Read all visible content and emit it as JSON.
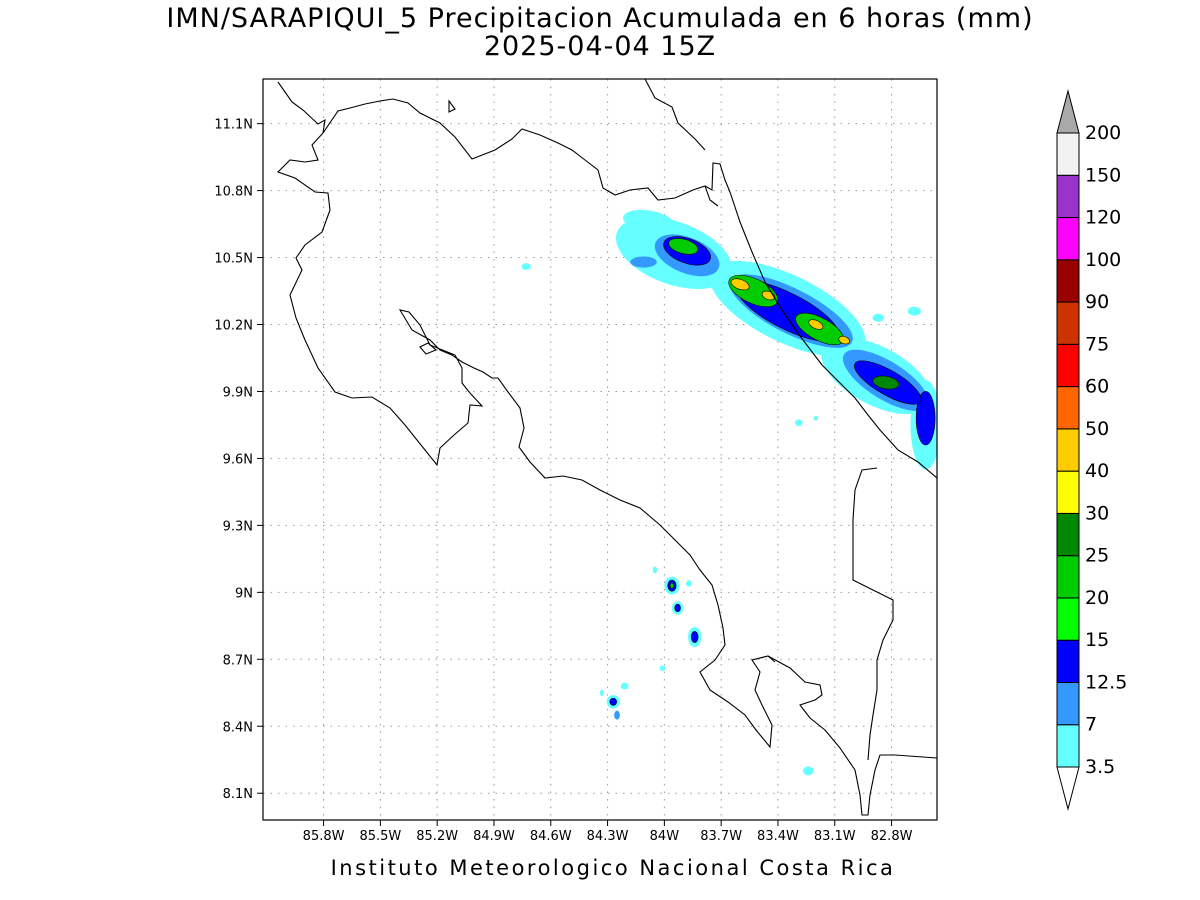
{
  "title": {
    "line1": "IMN/SARAPIQUI_5 Precipitacion Acumulada en 6 horas (mm)",
    "line2": "2025-04-04 15Z"
  },
  "footer": {
    "credit": "Instituto Meteorologico Nacional Costa Rica"
  },
  "map": {
    "lon_range": [
      -86.12,
      -82.56
    ],
    "lat_range": [
      7.98,
      11.3
    ],
    "lon_ticks": [
      {
        "value": -85.8,
        "label": "85.8W"
      },
      {
        "value": -85.5,
        "label": "85.5W"
      },
      {
        "value": -85.2,
        "label": "85.2W"
      },
      {
        "value": -84.9,
        "label": "84.9W"
      },
      {
        "value": -84.6,
        "label": "84.6W"
      },
      {
        "value": -84.3,
        "label": "84.3W"
      },
      {
        "value": -84.0,
        "label": "84W"
      },
      {
        "value": -83.7,
        "label": "83.7W"
      },
      {
        "value": -83.4,
        "label": "83.4W"
      },
      {
        "value": -83.1,
        "label": "83.1W"
      },
      {
        "value": -82.8,
        "label": "82.8W"
      }
    ],
    "lat_ticks": [
      {
        "value": 11.1,
        "label": "11.1N"
      },
      {
        "value": 10.8,
        "label": "10.8N"
      },
      {
        "value": 10.5,
        "label": "10.5N"
      },
      {
        "value": 10.2,
        "label": "10.2N"
      },
      {
        "value": 9.9,
        "label": "9.9N"
      },
      {
        "value": 9.6,
        "label": "9.6N"
      },
      {
        "value": 9.3,
        "label": "9.3N"
      },
      {
        "value": 9.0,
        "label": "9N"
      },
      {
        "value": 8.7,
        "label": "8.7N"
      },
      {
        "value": 8.4,
        "label": "8.4N"
      },
      {
        "value": 8.1,
        "label": "8.1N"
      }
    ],
    "grid": true,
    "precip_features": [
      {
        "name": "band-caribbean-northwest",
        "level": 0,
        "lon": -83.95,
        "lat": 10.52,
        "rlon": 0.32,
        "rlat": 0.14,
        "rot": 20
      },
      {
        "name": "band-caribbean-north-tip",
        "level": 0,
        "lon": -84.08,
        "lat": 10.66,
        "rlon": 0.14,
        "rlat": 0.05,
        "rot": 10
      },
      {
        "name": "band-caribbean-mid",
        "level": 0,
        "lon": -83.35,
        "lat": 10.27,
        "rlon": 0.45,
        "rlat": 0.15,
        "rot": 26
      },
      {
        "name": "band-caribbean-southeast",
        "level": 0,
        "lon": -82.88,
        "lat": 9.97,
        "rlon": 0.32,
        "rlat": 0.13,
        "rot": 28
      },
      {
        "name": "band-caribbean-coast-edge",
        "level": 0,
        "lon": -82.62,
        "lat": 9.75,
        "rlon": 0.08,
        "rlat": 0.2,
        "rot": 0
      },
      {
        "name": "band-light-west",
        "level": 1,
        "lon": -84.11,
        "lat": 10.48,
        "rlon": 0.07,
        "rlat": 0.025,
        "rot": 0
      },
      {
        "name": "band-moderate-northwest",
        "level": 1,
        "lon": -83.88,
        "lat": 10.51,
        "rlon": 0.18,
        "rlat": 0.08,
        "rot": 22
      },
      {
        "name": "band-moderate-mid",
        "level": 1,
        "lon": -83.33,
        "lat": 10.26,
        "rlon": 0.36,
        "rlat": 0.1,
        "rot": 27
      },
      {
        "name": "band-moderate-southeast",
        "level": 1,
        "lon": -82.83,
        "lat": 9.95,
        "rlon": 0.26,
        "rlat": 0.085,
        "rot": 32
      },
      {
        "name": "band-moderate-coast-edge",
        "level": 2,
        "lon": -82.62,
        "lat": 9.78,
        "rlon": 0.05,
        "rlat": 0.12,
        "rot": 0
      },
      {
        "name": "band-heavy-northwest",
        "level": 2,
        "lon": -83.88,
        "lat": 10.53,
        "rlon": 0.13,
        "rlat": 0.055,
        "rot": 20
      },
      {
        "name": "band-heavy-mid",
        "level": 2,
        "lon": -83.35,
        "lat": 10.26,
        "rlon": 0.3,
        "rlat": 0.08,
        "rot": 27
      },
      {
        "name": "band-heavy-southeast",
        "level": 2,
        "lon": -82.82,
        "lat": 9.94,
        "rlon": 0.2,
        "rlat": 0.055,
        "rot": 30
      },
      {
        "name": "core-north",
        "level": 4,
        "lon": -83.9,
        "lat": 10.55,
        "rlon": 0.08,
        "rlat": 0.032,
        "rot": 15
      },
      {
        "name": "core-mid-west",
        "level": 4,
        "lon": -83.53,
        "lat": 10.35,
        "rlon": 0.14,
        "rlat": 0.055,
        "rot": 25
      },
      {
        "name": "core-mid-east",
        "level": 4,
        "lon": -83.18,
        "lat": 10.18,
        "rlon": 0.14,
        "rlat": 0.05,
        "rot": 28
      },
      {
        "name": "core-southeast",
        "level": 5,
        "lon": -82.83,
        "lat": 9.94,
        "rlon": 0.07,
        "rlat": 0.028,
        "rot": 10
      },
      {
        "name": "peak-mid-west",
        "level": 7,
        "lon": -83.6,
        "lat": 10.38,
        "rlon": 0.05,
        "rlat": 0.022,
        "rot": 20
      },
      {
        "name": "peak-mid-center",
        "level": 7,
        "lon": -83.45,
        "lat": 10.33,
        "rlon": 0.035,
        "rlat": 0.018,
        "rot": 20
      },
      {
        "name": "peak-mid-east",
        "level": 7,
        "lon": -83.2,
        "lat": 10.2,
        "rlon": 0.04,
        "rlat": 0.018,
        "rot": 25
      },
      {
        "name": "peak-east",
        "level": 7,
        "lon": -83.05,
        "lat": 10.13,
        "rlon": 0.03,
        "rlat": 0.016,
        "rot": 20
      },
      {
        "name": "cell-pacific-a-outer",
        "level": 0,
        "lon": -83.96,
        "lat": 9.03,
        "rlon": 0.04,
        "rlat": 0.04,
        "rot": 0
      },
      {
        "name": "cell-pacific-a-mid",
        "level": 2,
        "lon": -83.96,
        "lat": 9.03,
        "rlon": 0.022,
        "rlat": 0.025,
        "rot": 0
      },
      {
        "name": "cell-pacific-a-core",
        "level": 4,
        "lon": -83.96,
        "lat": 9.03,
        "rlon": 0.01,
        "rlat": 0.012,
        "rot": 0
      },
      {
        "name": "cell-pacific-b-outer",
        "level": 0,
        "lon": -83.93,
        "lat": 8.93,
        "rlon": 0.03,
        "rlat": 0.03,
        "rot": 0
      },
      {
        "name": "cell-pacific-b-core",
        "level": 2,
        "lon": -83.93,
        "lat": 8.93,
        "rlon": 0.015,
        "rlat": 0.017,
        "rot": 0
      },
      {
        "name": "cell-pacific-c-outer",
        "level": 0,
        "lon": -83.84,
        "lat": 8.8,
        "rlon": 0.035,
        "rlat": 0.045,
        "rot": 0
      },
      {
        "name": "cell-pacific-c-core",
        "level": 2,
        "lon": -83.84,
        "lat": 8.8,
        "rlon": 0.018,
        "rlat": 0.025,
        "rot": 0
      },
      {
        "name": "cell-osa-a-outer",
        "level": 0,
        "lon": -84.27,
        "lat": 8.51,
        "rlon": 0.035,
        "rlat": 0.03,
        "rot": 0
      },
      {
        "name": "cell-osa-a-core",
        "level": 2,
        "lon": -84.27,
        "lat": 8.51,
        "rlon": 0.018,
        "rlat": 0.016,
        "rot": 0
      },
      {
        "name": "cell-osa-b",
        "level": 1,
        "lon": -84.25,
        "lat": 8.45,
        "rlon": 0.015,
        "rlat": 0.02,
        "rot": 0
      },
      {
        "name": "speck-pacific-1",
        "level": 0,
        "lon": -83.87,
        "lat": 9.04,
        "rlon": 0.015,
        "rlat": 0.015,
        "rot": 0
      },
      {
        "name": "speck-pacific-2",
        "level": 0,
        "lon": -84.05,
        "lat": 9.1,
        "rlon": 0.012,
        "rlat": 0.015,
        "rot": 0
      },
      {
        "name": "speck-pacific-3",
        "level": 0,
        "lon": -84.01,
        "lat": 8.66,
        "rlon": 0.015,
        "rlat": 0.012,
        "rot": 0
      },
      {
        "name": "speck-osa-1",
        "level": 0,
        "lon": -84.21,
        "lat": 8.58,
        "rlon": 0.02,
        "rlat": 0.015,
        "rot": 0
      },
      {
        "name": "speck-osa-2",
        "level": 0,
        "lon": -84.33,
        "lat": 8.55,
        "rlon": 0.01,
        "rlat": 0.015,
        "rot": 0
      },
      {
        "name": "speck-south",
        "level": 0,
        "lon": -83.24,
        "lat": 8.2,
        "rlon": 0.028,
        "rlat": 0.02,
        "rot": 0
      },
      {
        "name": "speck-north-west",
        "level": 0,
        "lon": -84.73,
        "lat": 10.46,
        "rlon": 0.025,
        "rlat": 0.015,
        "rot": 0
      },
      {
        "name": "speck-east-1",
        "level": 0,
        "lon": -82.87,
        "lat": 10.23,
        "rlon": 0.03,
        "rlat": 0.018,
        "rot": 0
      },
      {
        "name": "speck-east-2",
        "level": 0,
        "lon": -82.68,
        "lat": 10.26,
        "rlon": 0.035,
        "rlat": 0.02,
        "rot": 0
      },
      {
        "name": "speck-east-3",
        "level": 0,
        "lon": -83.29,
        "lat": 9.76,
        "rlon": 0.02,
        "rlat": 0.015,
        "rot": 0
      },
      {
        "name": "speck-east-4",
        "level": 0,
        "lon": -83.2,
        "lat": 9.78,
        "rlon": 0.012,
        "rlat": 0.01,
        "rot": 0
      }
    ]
  },
  "colorbar": {
    "colors": [
      "#66ffff",
      "#3399ff",
      "#0000ff",
      "#00ff00",
      "#00cc00",
      "#008800",
      "#ffff00",
      "#ffcc00",
      "#ff6600",
      "#ff0000",
      "#cc3300",
      "#990000",
      "#ff00ff",
      "#9933cc",
      "#f2f2f2"
    ],
    "upper_arrow_color": "#aaaaaa",
    "lower_arrow_color": "#ffffff",
    "labels": [
      "3.5",
      "7",
      "12.5",
      "15",
      "20",
      "25",
      "30",
      "40",
      "50",
      "60",
      "75",
      "90",
      "100",
      "120",
      "150",
      "200"
    ]
  }
}
